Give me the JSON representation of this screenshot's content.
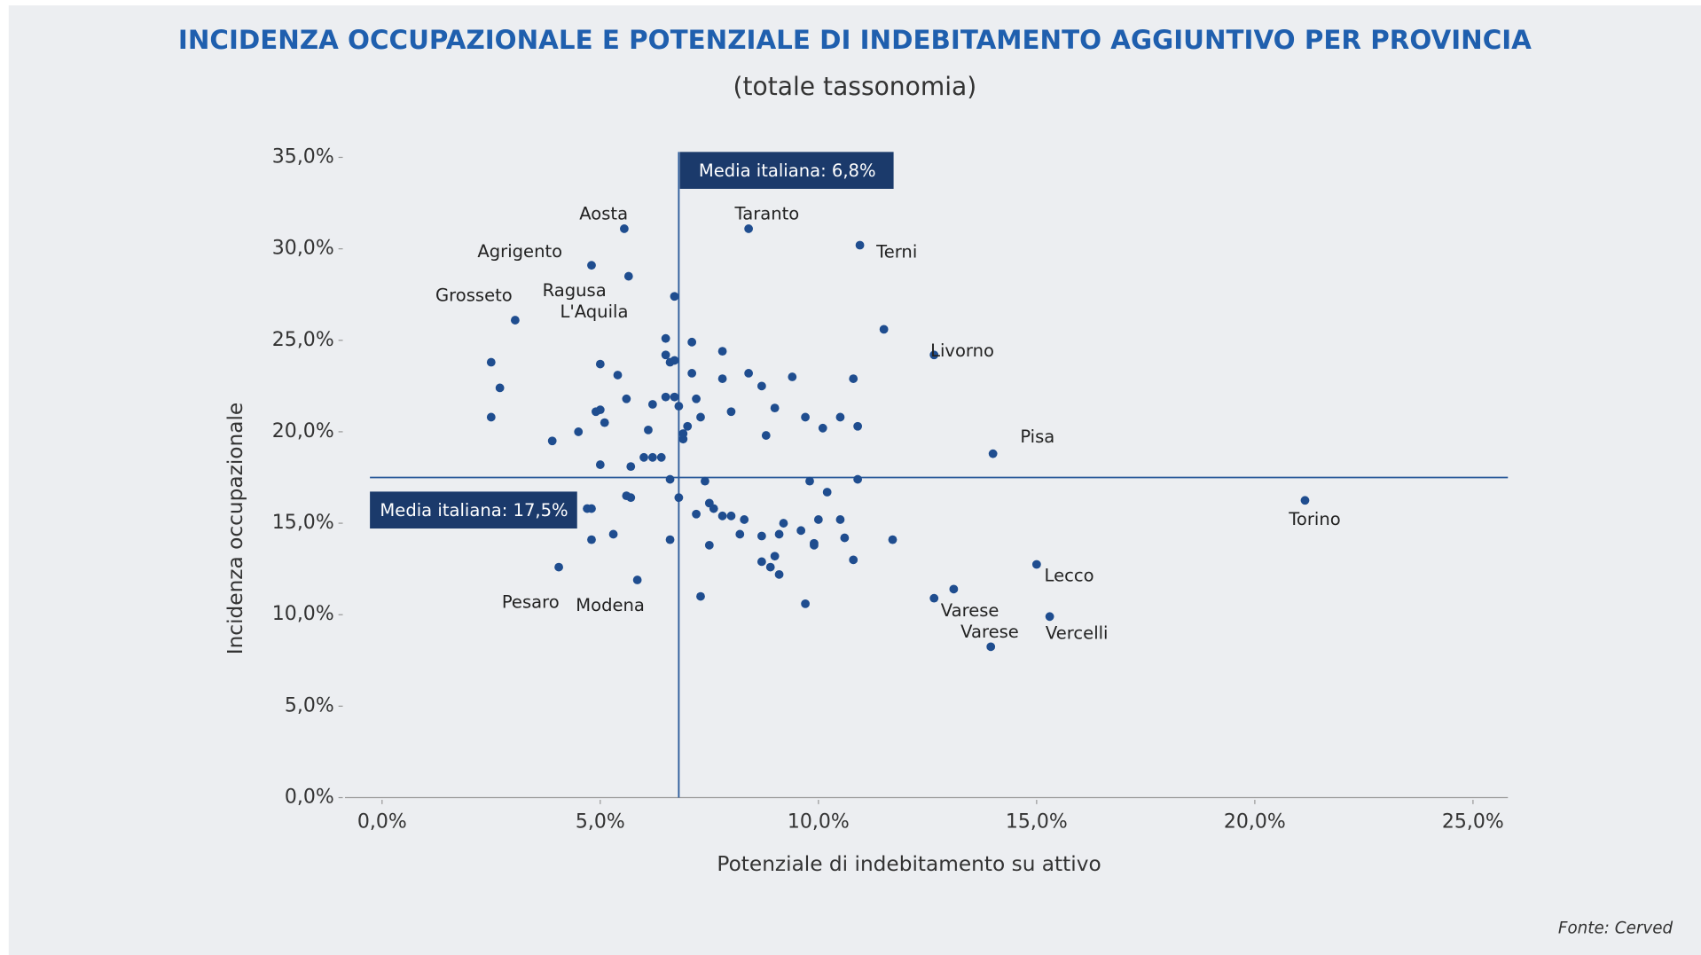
{
  "chart_data": {
    "type": "scatter",
    "title": "INCIDENZA OCCUPAZIONALE E POTENZIALE DI INDEBITAMENTO AGGIUNTIVO PER PROVINCIA",
    "subtitle": "(totale tassonomia)",
    "x_label": "Potenziale di indebitamento su attivo",
    "y_label": "Incidenza occupazionale",
    "source": "Fonte: Cerved",
    "color": "#1f4d8f",
    "xlim": [
      -0.85,
      25.8
    ],
    "ylim": [
      0,
      35
    ],
    "xticks": [
      {
        "value": 0,
        "label": "0,0%"
      },
      {
        "value": 5,
        "label": "5,0%"
      },
      {
        "value": 10,
        "label": "10,0%"
      },
      {
        "value": 15,
        "label": "15,0%"
      },
      {
        "value": 20,
        "label": "20,0%"
      },
      {
        "value": 25,
        "label": "25,0%"
      }
    ],
    "yticks": [
      {
        "value": 0,
        "label": "0,0%"
      },
      {
        "value": 5,
        "label": "5,0%"
      },
      {
        "value": 10,
        "label": "10,0%"
      },
      {
        "value": 15,
        "label": "15,0%"
      },
      {
        "value": 20,
        "label": "20,0%"
      },
      {
        "value": 25,
        "label": "25,0%"
      },
      {
        "value": 30,
        "label": "30,0%"
      },
      {
        "value": 35,
        "label": "35,0%"
      }
    ],
    "reference_lines": {
      "x": {
        "value": 6.8,
        "label": "Media italiana: 6,8%"
      },
      "y": {
        "value": 17.5,
        "label": "Media italiana: 17,5%"
      }
    },
    "labels": [
      "Aosta",
      "Taranto",
      "Terni",
      "Agrigento",
      "Ragusa",
      "L'Aquila",
      "Grosseto",
      "Livorno",
      "Pisa",
      "Torino",
      "Lecco",
      "Varese",
      "Varese",
      "Vercelli",
      "Pesaro",
      "Modena",
      null,
      null,
      null,
      null,
      null,
      null,
      null,
      null,
      null,
      null,
      null,
      null,
      null,
      null,
      null,
      null,
      null,
      null,
      null,
      null,
      null,
      null,
      null,
      null,
      null,
      null,
      null,
      null,
      null,
      null,
      null,
      null,
      null,
      null,
      null,
      null,
      null,
      null,
      null,
      null,
      null,
      null,
      null,
      null,
      null,
      null,
      null,
      null,
      null,
      null,
      null,
      null,
      null,
      null,
      null,
      null,
      null,
      null,
      null,
      null,
      null,
      null,
      null,
      null,
      null,
      null,
      null,
      null,
      null,
      null,
      null,
      null,
      null,
      null,
      null,
      null,
      null,
      null,
      null,
      null
    ],
    "x": [
      5.55,
      8.4,
      10.95,
      4.8,
      5.65,
      6.7,
      3.05,
      12.65,
      14.0,
      21.15,
      15.0,
      12.65,
      13.95,
      15.3,
      4.05,
      5.85,
      2.5,
      2.7,
      2.5,
      3.9,
      4.5,
      5.0,
      5.4,
      5.6,
      4.9,
      5.0,
      5.1,
      5.0,
      5.7,
      6.1,
      6.2,
      6.0,
      6.2,
      6.4,
      6.5,
      6.5,
      6.6,
      6.5,
      6.7,
      6.7,
      6.8,
      6.9,
      6.9,
      7.0,
      7.1,
      7.1,
      7.2,
      7.3,
      7.8,
      7.8,
      8.0,
      8.4,
      8.7,
      9.4,
      9.0,
      8.8,
      9.7,
      10.1,
      10.5,
      10.8,
      10.9,
      9.8,
      10.2,
      10.9,
      6.6,
      7.4,
      6.8,
      5.6,
      5.7,
      4.7,
      4.8,
      7.5,
      7.6,
      7.2,
      7.8,
      8.0,
      8.3,
      8.7,
      9.2,
      9.1,
      9.6,
      10.0,
      9.9,
      9.9,
      10.5,
      10.6,
      10.8,
      11.7,
      8.2,
      4.8,
      5.3,
      6.6,
      7.5,
      8.7,
      9.0,
      8.9,
      9.1,
      7.3,
      9.7,
      13.1,
      11.5
    ],
    "values": [
      31.1,
      31.1,
      30.2,
      29.1,
      28.5,
      27.4,
      26.1,
      24.2,
      18.8,
      16.25,
      12.75,
      10.9,
      8.25,
      9.9,
      12.6,
      11.9,
      23.8,
      22.4,
      20.8,
      19.5,
      20.0,
      23.7,
      23.1,
      21.8,
      21.1,
      21.2,
      20.5,
      18.2,
      18.1,
      20.1,
      21.5,
      18.6,
      18.6,
      18.6,
      21.9,
      24.2,
      23.8,
      25.1,
      23.9,
      21.9,
      21.4,
      19.6,
      19.9,
      20.3,
      24.9,
      23.2,
      21.8,
      20.8,
      24.4,
      22.9,
      21.1,
      23.2,
      22.5,
      23.0,
      21.3,
      19.8,
      20.8,
      20.2,
      20.8,
      22.9,
      20.3,
      17.3,
      16.7,
      17.4,
      17.4,
      17.3,
      16.4,
      16.5,
      16.4,
      15.8,
      15.8,
      16.1,
      15.8,
      15.5,
      15.4,
      15.4,
      15.2,
      14.3,
      15.0,
      14.4,
      14.6,
      15.2,
      13.9,
      13.8,
      15.2,
      14.2,
      13.0,
      14.1,
      14.4,
      14.1,
      14.4,
      14.1,
      13.8,
      12.9,
      13.2,
      12.6,
      12.2,
      11.0,
      10.6,
      11.4,
      25.6
    ]
  }
}
